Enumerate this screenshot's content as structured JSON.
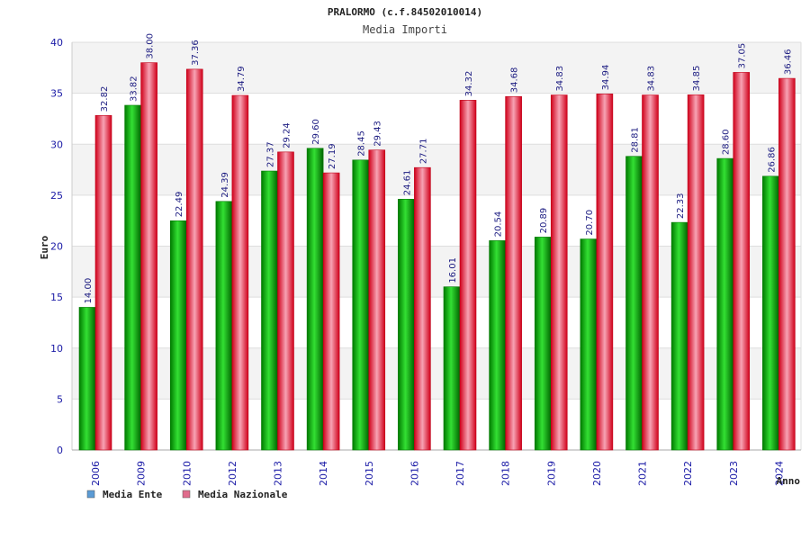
{
  "chart_data": {
    "type": "bar",
    "title": "PRALORMO (c.f.84502010014)",
    "subtitle": "Media Importi",
    "xlabel": "Anno",
    "ylabel": "Euro",
    "ylim": [
      0,
      40
    ],
    "yticks": [
      "0",
      "5",
      "10",
      "15",
      "20",
      "25",
      "30",
      "35",
      "40"
    ],
    "grid": true,
    "legend_position": "bottom-left",
    "categories": [
      "2006",
      "2009",
      "2010",
      "2012",
      "2013",
      "2014",
      "2015",
      "2016",
      "2017",
      "2018",
      "2019",
      "2020",
      "2021",
      "2022",
      "2023",
      "2024"
    ],
    "series": [
      {
        "name": "Media Ente",
        "color": "#00b000",
        "legend_color": "#5b9bd5",
        "values": [
          14.0,
          33.82,
          22.49,
          24.39,
          27.37,
          29.6,
          28.45,
          24.61,
          16.01,
          20.54,
          20.89,
          20.7,
          28.81,
          22.33,
          28.6,
          26.86
        ],
        "labels": [
          "14.00",
          "33.82",
          "22.49",
          "24.39",
          "27.37",
          "29.60",
          "28.45",
          "24.61",
          "16.01",
          "20.54",
          "20.89",
          "20.70",
          "28.81",
          "22.33",
          "28.60",
          "26.86"
        ]
      },
      {
        "name": "Media Nazionale",
        "color": "#e8001a",
        "legend_color": "#e06c8c",
        "values": [
          32.82,
          38.0,
          37.36,
          34.79,
          29.24,
          27.19,
          29.43,
          27.71,
          34.32,
          34.68,
          34.83,
          34.94,
          34.83,
          34.85,
          37.05,
          36.46
        ],
        "labels": [
          "32.82",
          "38.00",
          "37.36",
          "34.79",
          "29.24",
          "27.19",
          "29.43",
          "27.71",
          "34.32",
          "34.68",
          "34.83",
          "34.94",
          "34.83",
          "34.85",
          "37.05",
          "36.46"
        ]
      }
    ]
  }
}
